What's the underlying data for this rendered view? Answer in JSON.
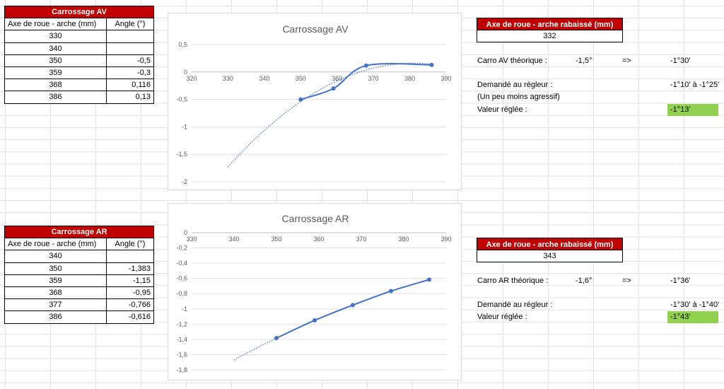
{
  "table_av": {
    "title": "Carrossage AV",
    "col1": "Axe de roue - arche (mm)",
    "col2": "Angle (°)",
    "rows": [
      {
        "axe": "330",
        "angle": ""
      },
      {
        "axe": "340",
        "angle": ""
      },
      {
        "axe": "350",
        "angle": "-0,5"
      },
      {
        "axe": "359",
        "angle": "-0,3"
      },
      {
        "axe": "368",
        "angle": "0,116"
      },
      {
        "axe": "386",
        "angle": "0,13"
      }
    ]
  },
  "table_ar": {
    "title": "Carrossage AR",
    "col1": "Axe de roue - arche (mm)",
    "col2": "Angle (°)",
    "rows": [
      {
        "axe": "340",
        "angle": ""
      },
      {
        "axe": "350",
        "angle": "-1,383"
      },
      {
        "axe": "359",
        "angle": "-1,15"
      },
      {
        "axe": "368",
        "angle": "-0,95"
      },
      {
        "axe": "377",
        "angle": "-0,766"
      },
      {
        "axe": "386",
        "angle": "-0,616"
      }
    ]
  },
  "info_av": {
    "box_title": "Axe de roue - arche rabaissé (mm)",
    "box_value": "332",
    "theo_label": "Carro AV théorique :",
    "theo_value": "-1,5°",
    "arrow": "=>",
    "theo_dms": "-1°30'",
    "demande_label": "Demandé au régleur :",
    "demande_value": "-1°10' à -1°25'",
    "note": "(Un peu moins agressif)",
    "reglee_label": "Valeur réglée :",
    "reglee_value": "-1°13'"
  },
  "info_ar": {
    "box_title": "Axe de roue - arche rabaissé (mm)",
    "box_value": "343",
    "theo_label": "Carro AR théorique :",
    "theo_value": "-1,6°",
    "arrow": "=>",
    "theo_dms": "-1°36'",
    "demande_label": "Demandé au régleur :",
    "demande_value": "-1°30' à -1°40'",
    "reglee_label": "Valeur réglée :",
    "reglee_value": "-1°43'"
  },
  "colors": {
    "header_red": "#c00000",
    "highlight_green": "#92d050",
    "series_blue": "#4472c4"
  },
  "chart_data": [
    {
      "type": "scatter",
      "title": "Carrossage AV",
      "x": [
        350,
        359,
        368,
        386
      ],
      "y": [
        -0.5,
        -0.3,
        0.116,
        0.13
      ],
      "xlim": [
        320,
        390
      ],
      "ylim": [
        -2,
        0.5
      ],
      "xticks": [
        320,
        330,
        340,
        350,
        360,
        370,
        380,
        390
      ],
      "yticks": [
        0.5,
        0,
        -0.5,
        -1,
        -1.5,
        -2
      ],
      "ytick_labels": [
        "0,5",
        "0",
        "-0,5",
        "-1",
        "-1,5",
        "-2"
      ],
      "trendline": "polynomial, dotted, from 330",
      "grid": "horizontal"
    },
    {
      "type": "scatter",
      "title": "Carrossage AR",
      "x": [
        350,
        359,
        368,
        377,
        386
      ],
      "y": [
        -1.383,
        -1.15,
        -0.95,
        -0.766,
        -0.616
      ],
      "xlim": [
        330,
        390
      ],
      "ylim": [
        -1.8,
        0
      ],
      "xticks": [
        330,
        340,
        350,
        360,
        370,
        380,
        390
      ],
      "yticks": [
        0,
        -0.2,
        -0.4,
        -0.6,
        -0.8,
        -1,
        -1.2,
        -1.4,
        -1.6,
        -1.8
      ],
      "ytick_labels": [
        "0",
        "-0,2",
        "-0,4",
        "-0,6",
        "-0,8",
        "-1",
        "-1,2",
        "-1,4",
        "-1,6",
        "-1,8"
      ],
      "trendline": "dotted, from 340",
      "grid": "horizontal"
    }
  ]
}
